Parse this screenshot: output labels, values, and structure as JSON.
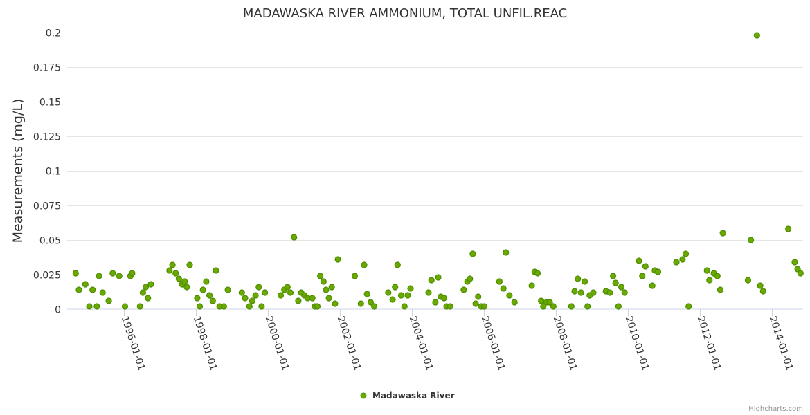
{
  "chart_data": {
    "type": "scatter",
    "title": "MADAWASKA RIVER AMMONIUM, TOTAL UNFIL.REAC",
    "ylabel": "Measurements (mg/L)",
    "xlabel": "",
    "ylim": [
      0,
      0.2
    ],
    "xlim": [
      "1994-06-01",
      "2014-11-15"
    ],
    "yticks": [
      {
        "value": 0,
        "label": "0"
      },
      {
        "value": 0.025,
        "label": "0.025"
      },
      {
        "value": 0.05,
        "label": "0.05"
      },
      {
        "value": 0.075,
        "label": "0.075"
      },
      {
        "value": 0.1,
        "label": "0.1"
      },
      {
        "value": 0.125,
        "label": "0.125"
      },
      {
        "value": 0.15,
        "label": "0.15"
      },
      {
        "value": 0.175,
        "label": "0.175"
      },
      {
        "value": 0.2,
        "label": "0.2"
      }
    ],
    "xticks": [
      {
        "value": "1996-01-01",
        "label": "1996-01-01"
      },
      {
        "value": "1998-01-01",
        "label": "1998-01-01"
      },
      {
        "value": "2000-01-01",
        "label": "2000-01-01"
      },
      {
        "value": "2002-01-01",
        "label": "2002-01-01"
      },
      {
        "value": "2004-01-01",
        "label": "2004-01-01"
      },
      {
        "value": "2006-01-01",
        "label": "2006-01-01"
      },
      {
        "value": "2008-01-01",
        "label": "2008-01-01"
      },
      {
        "value": "2010-01-01",
        "label": "2010-01-01"
      },
      {
        "value": "2012-01-01",
        "label": "2012-01-01"
      },
      {
        "value": "2014-01-01",
        "label": "2014-01-01"
      }
    ],
    "grid": true,
    "legend_position": "bottom-center",
    "series": [
      {
        "name": "Madawaska River",
        "color": "#6aaa00",
        "stroke": "#4d8c00",
        "x": [
          1994.65,
          1994.74,
          1994.92,
          1995.03,
          1995.12,
          1995.24,
          1995.3,
          1995.4,
          1995.57,
          1995.68,
          1995.86,
          1996.02,
          1996.17,
          1996.22,
          1996.44,
          1996.52,
          1996.6,
          1996.66,
          1996.74,
          1997.26,
          1997.34,
          1997.43,
          1997.52,
          1997.61,
          1997.68,
          1997.74,
          1997.82,
          1998.03,
          1998.1,
          1998.19,
          1998.28,
          1998.37,
          1998.46,
          1998.55,
          1998.65,
          1998.77,
          1998.88,
          1999.27,
          1999.36,
          1999.48,
          1999.56,
          1999.65,
          1999.74,
          1999.82,
          1999.91,
          2000.35,
          2000.45,
          2000.54,
          2000.62,
          2000.72,
          2000.84,
          2000.92,
          2001.01,
          2001.1,
          2001.23,
          2001.3,
          2001.37,
          2001.45,
          2001.54,
          2001.61,
          2001.69,
          2001.77,
          2001.86,
          2001.94,
          2002.41,
          2002.58,
          2002.67,
          2002.75,
          2002.85,
          2002.95,
          2003.34,
          2003.46,
          2003.53,
          2003.6,
          2003.7,
          2003.79,
          2003.88,
          2003.96,
          2004.46,
          2004.54,
          2004.65,
          2004.73,
          2004.8,
          2004.89,
          2004.96,
          2005.06,
          2005.44,
          2005.54,
          2005.61,
          2005.69,
          2005.77,
          2005.84,
          2005.92,
          2006.01,
          2006.43,
          2006.54,
          2006.61,
          2006.71,
          2006.85,
          2007.33,
          2007.41,
          2007.49,
          2007.59,
          2007.65,
          2007.74,
          2007.83,
          2007.93,
          2008.43,
          2008.52,
          2008.61,
          2008.7,
          2008.8,
          2008.88,
          2008.94,
          2009.04,
          2009.39,
          2009.5,
          2009.59,
          2009.66,
          2009.74,
          2009.82,
          2009.91,
          2010.31,
          2010.4,
          2010.49,
          2010.68,
          2010.75,
          2010.84,
          2011.35,
          2011.52,
          2011.61,
          2011.69,
          2012.2,
          2012.27,
          2012.39,
          2012.49,
          2012.57,
          2012.64,
          2013.34,
          2013.42,
          2013.59,
          2013.68,
          2013.76,
          2014.46,
          2014.64,
          2014.72,
          2014.8
        ],
        "y": [
          0.026,
          0.014,
          0.018,
          0.002,
          0.014,
          0.002,
          0.024,
          0.012,
          0.006,
          0.026,
          0.024,
          0.002,
          0.024,
          0.026,
          0.002,
          0.012,
          0.016,
          0.008,
          0.018,
          0.028,
          0.032,
          0.026,
          0.022,
          0.018,
          0.02,
          0.016,
          0.032,
          0.008,
          0.002,
          0.014,
          0.02,
          0.01,
          0.006,
          0.028,
          0.002,
          0.002,
          0.014,
          0.012,
          0.008,
          0.002,
          0.006,
          0.01,
          0.016,
          0.002,
          0.012,
          0.01,
          0.014,
          0.016,
          0.012,
          0.052,
          0.006,
          0.012,
          0.01,
          0.008,
          0.008,
          0.002,
          0.002,
          0.024,
          0.02,
          0.014,
          0.008,
          0.016,
          0.004,
          0.036,
          0.024,
          0.004,
          0.032,
          0.011,
          0.005,
          0.002,
          0.012,
          0.007,
          0.016,
          0.032,
          0.01,
          0.002,
          0.01,
          0.015,
          0.012,
          0.021,
          0.005,
          0.023,
          0.009,
          0.008,
          0.002,
          0.002,
          0.014,
          0.02,
          0.022,
          0.04,
          0.004,
          0.009,
          0.002,
          0.002,
          0.02,
          0.015,
          0.041,
          0.01,
          0.005,
          0.017,
          0.027,
          0.026,
          0.006,
          0.002,
          0.005,
          0.005,
          0.002,
          0.002,
          0.013,
          0.022,
          0.012,
          0.02,
          0.002,
          0.01,
          0.012,
          0.013,
          0.012,
          0.024,
          0.019,
          0.002,
          0.016,
          0.012,
          0.035,
          0.024,
          0.031,
          0.017,
          0.028,
          0.027,
          0.034,
          0.036,
          0.04,
          0.002,
          0.028,
          0.021,
          0.026,
          0.024,
          0.014,
          0.055,
          0.021,
          0.05,
          0.198,
          0.017,
          0.013,
          0.058,
          0.034,
          0.029,
          0.026
        ]
      }
    ],
    "credits": "Highcharts.com"
  }
}
